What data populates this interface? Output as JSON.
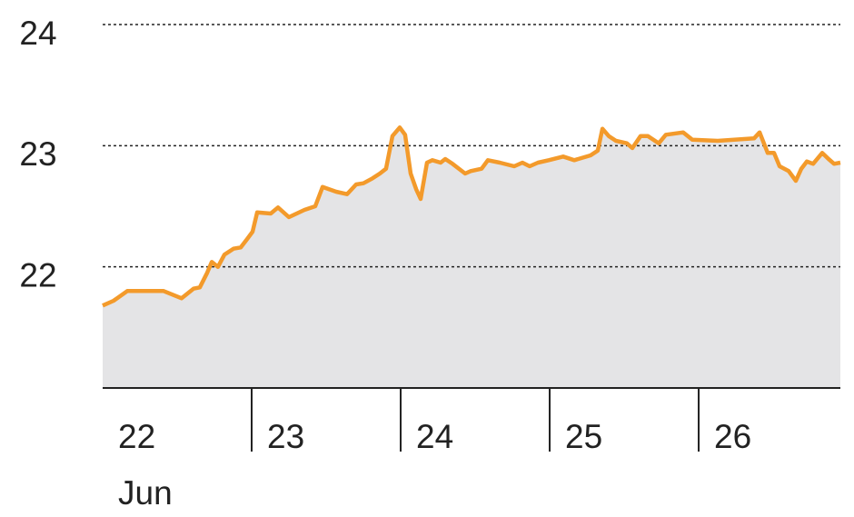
{
  "chart_data": {
    "type": "area",
    "x": [
      22.0,
      22.073,
      22.165,
      22.409,
      22.53,
      22.61,
      22.652,
      22.701,
      22.732,
      22.774,
      22.817,
      22.878,
      22.927,
      22.97,
      23.006,
      23.037,
      23.128,
      23.177,
      23.25,
      23.354,
      23.427,
      23.476,
      23.567,
      23.64,
      23.701,
      23.75,
      23.811,
      23.86,
      23.902,
      23.945,
      23.994,
      24.03,
      24.067,
      24.104,
      24.134,
      24.177,
      24.213,
      24.268,
      24.299,
      24.348,
      24.433,
      24.47,
      24.543,
      24.585,
      24.665,
      24.762,
      24.817,
      24.866,
      24.921,
      24.994,
      25.091,
      25.165,
      25.274,
      25.323,
      25.354,
      25.396,
      25.445,
      25.518,
      25.555,
      25.61,
      25.659,
      25.732,
      25.78,
      25.896,
      25.957,
      26.128,
      26.372,
      26.409,
      26.463,
      26.506,
      26.543,
      26.604,
      26.652,
      26.689,
      26.726,
      26.768,
      26.829,
      26.872,
      26.909,
      26.951
    ],
    "series": [
      {
        "name": "value",
        "color": "#f39a2b",
        "fill": "#e4e4e6",
        "values": [
          21.68,
          21.72,
          21.8,
          21.8,
          21.74,
          21.82,
          21.83,
          21.95,
          22.04,
          22.0,
          22.1,
          22.15,
          22.16,
          22.23,
          22.29,
          22.45,
          22.44,
          22.49,
          22.41,
          22.47,
          22.5,
          22.66,
          22.62,
          22.6,
          22.68,
          22.69,
          22.73,
          22.77,
          22.81,
          23.08,
          23.15,
          23.09,
          22.77,
          22.64,
          22.56,
          22.86,
          22.88,
          22.86,
          22.89,
          22.85,
          22.77,
          22.79,
          22.81,
          22.88,
          22.86,
          22.83,
          22.86,
          22.83,
          22.86,
          22.88,
          22.91,
          22.88,
          22.92,
          22.96,
          23.14,
          23.08,
          23.04,
          23.02,
          22.98,
          23.08,
          23.08,
          23.02,
          23.09,
          23.11,
          23.05,
          23.04,
          23.06,
          23.11,
          22.94,
          22.94,
          22.83,
          22.79,
          22.71,
          22.81,
          22.87,
          22.85,
          22.94,
          22.89,
          22.85,
          22.86
        ]
      }
    ],
    "xlim": [
      22,
      26.951
    ],
    "xticks": [
      22,
      23,
      24,
      25,
      26
    ],
    "month_label": "Jun",
    "ylim": [
      21,
      24
    ],
    "yticks": [
      22,
      23,
      24
    ],
    "grid": true
  }
}
